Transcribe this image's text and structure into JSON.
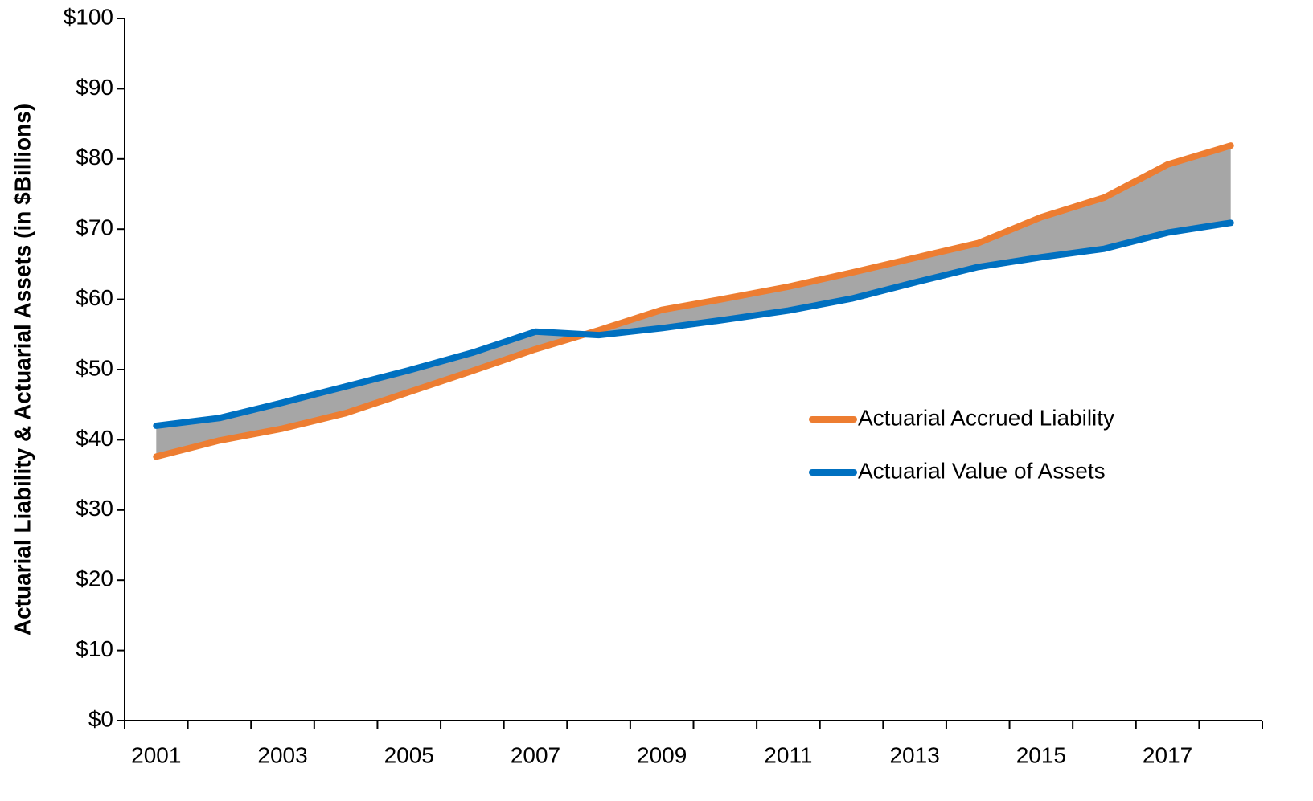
{
  "chart_data": {
    "type": "line",
    "y_label": "Actuarial Liability & Actuarial Assets (in $Billions)",
    "categories": [
      "2001",
      null,
      "2003",
      null,
      "2005",
      null,
      "2007",
      null,
      "2009",
      null,
      "2011",
      null,
      "2013",
      null,
      "2015",
      null,
      "2017",
      null
    ],
    "series": [
      {
        "name": "Actuarial Accrued Liability",
        "color": "#ed7d31",
        "values": [
          37.6,
          39.9,
          41.6,
          43.8,
          46.8,
          49.8,
          52.9,
          55.6,
          58.5,
          60.1,
          61.8,
          63.8,
          65.9,
          68.0,
          71.7,
          74.5,
          79.2,
          81.9
        ]
      },
      {
        "name": "Actuarial Value of Assets",
        "color": "#0070c0",
        "values": [
          42.0,
          43.1,
          45.3,
          47.6,
          49.9,
          52.4,
          55.4,
          54.9,
          55.9,
          57.1,
          58.4,
          60.1,
          62.4,
          64.6,
          66.0,
          67.2,
          69.5,
          70.9
        ]
      }
    ],
    "fill_between": true,
    "fill_color": "#a6a6a6",
    "ylim": [
      0,
      100
    ],
    "yticks": [
      {
        "value": 0,
        "label": "$0"
      },
      {
        "value": 10,
        "label": "$10"
      },
      {
        "value": 20,
        "label": "$20"
      },
      {
        "value": 30,
        "label": "$30"
      },
      {
        "value": 40,
        "label": "$40"
      },
      {
        "value": 50,
        "label": "$50"
      },
      {
        "value": 60,
        "label": "$60"
      },
      {
        "value": 70,
        "label": "$70"
      },
      {
        "value": 80,
        "label": "$80"
      },
      {
        "value": 90,
        "label": "$90"
      },
      {
        "value": 100,
        "label": "$100"
      }
    ],
    "grid": false,
    "legend": "right"
  }
}
